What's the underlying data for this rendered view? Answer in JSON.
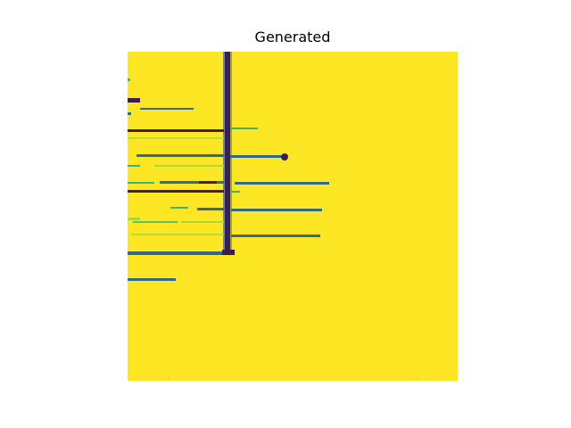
{
  "figure": {
    "title": "Generated"
  },
  "image": {
    "colormap": "viridis",
    "colors": {
      "background": "#fde724",
      "dark": "#3b1e54",
      "mid_dark": "#31688e",
      "mid": "#35b779",
      "light": "#a5db36"
    }
  }
}
